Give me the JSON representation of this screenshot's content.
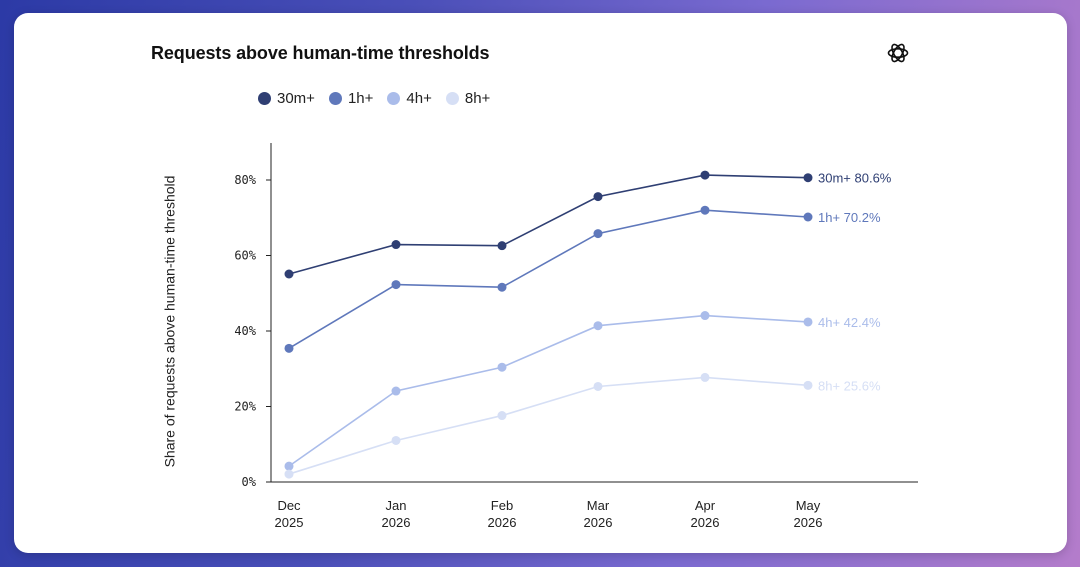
{
  "title": "Requests above human-time thresholds",
  "icons": {
    "logo": "openai-logo-icon"
  },
  "chart_data": {
    "type": "line",
    "title": "Requests above human-time thresholds",
    "xlabel": "",
    "ylabel": "Share of requests above human-time threshold",
    "x": [
      "Dec 2025",
      "Jan 2026",
      "Feb 2026",
      "Mar 2026",
      "Apr 2026",
      "May 2026"
    ],
    "yticks": [
      "0%",
      "20%",
      "40%",
      "60%",
      "80%"
    ],
    "ylim": [
      0,
      90
    ],
    "grid": false,
    "legend_position": "top-left",
    "series": [
      {
        "name": "30m+",
        "color": "#2f3f73",
        "values": [
          55.1,
          62.9,
          62.6,
          75.6,
          81.3,
          80.6
        ],
        "end_label": "30m+ 80.6%"
      },
      {
        "name": "1h+",
        "color": "#5f78bb",
        "values": [
          35.4,
          52.3,
          51.6,
          65.8,
          72.0,
          70.2
        ],
        "end_label": "1h+ 70.2%"
      },
      {
        "name": "4h+",
        "color": "#aabcea",
        "values": [
          4.2,
          24.1,
          30.4,
          41.4,
          44.1,
          42.4
        ],
        "end_label": "4h+ 42.4%"
      },
      {
        "name": "8h+",
        "color": "#d6dff5",
        "values": [
          2.1,
          11.0,
          17.6,
          25.3,
          27.7,
          25.6
        ],
        "end_label": "8h+ 25.6%"
      }
    ]
  }
}
